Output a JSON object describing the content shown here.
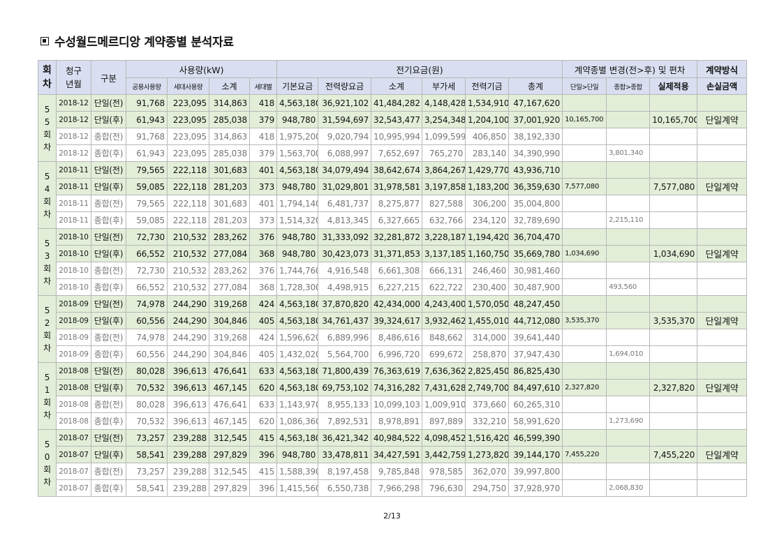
{
  "title": "수성월드메르디앙 계약종별 분석자료",
  "headers": {
    "round": "회\n차",
    "month": "청구\n년월",
    "category": "구분",
    "usage": "사용량(kW)",
    "fee": "전기요금(원)",
    "change": "계약종별 변경(전>후) 및 편차",
    "method": "계약방식",
    "usage_cols": [
      "공용사용량",
      "세대사용량",
      "소계",
      "세대별"
    ],
    "fee_cols": [
      "기본요금",
      "전력량요금",
      "소계",
      "부가세",
      "전력기금",
      "총계"
    ],
    "change_cols": [
      "단일>단일",
      "종합>종합",
      "실제적용"
    ],
    "method_col": "손실금액"
  },
  "groups": [
    {
      "round": "5\n5\n회\n차",
      "rows": [
        {
          "kind": "g",
          "month": "2018-12",
          "type": "단일(전)",
          "v": [
            "91,768",
            "223,095",
            "314,863",
            "418",
            "4,563,180",
            "36,921,102",
            "41,484,282",
            "4,148,428",
            "1,534,910",
            "47,167,620"
          ],
          "ss": "",
          "cc": "",
          "real": "",
          "method": ""
        },
        {
          "kind": "g",
          "month": "2018-12",
          "type": "단일(후)",
          "v": [
            "61,943",
            "223,095",
            "285,038",
            "379",
            "948,780",
            "31,594,697",
            "32,543,477",
            "3,254,348",
            "1,204,100",
            "37,001,920"
          ],
          "ss": "10,165,700",
          "cc": "",
          "real": "10,165,700",
          "method": "단일계약"
        },
        {
          "kind": "w",
          "month": "2018-12",
          "type": "종합(전)",
          "v": [
            "91,768",
            "223,095",
            "314,863",
            "418",
            "1,975,200",
            "9,020,794",
            "10,995,994",
            "1,099,599",
            "406,850",
            "38,192,330"
          ],
          "ss": "",
          "cc": "",
          "real": "",
          "method": ""
        },
        {
          "kind": "w",
          "month": "2018-12",
          "type": "종합(후)",
          "v": [
            "61,943",
            "223,095",
            "285,038",
            "379",
            "1,563,700",
            "6,088,997",
            "7,652,697",
            "765,270",
            "283,140",
            "34,390,990"
          ],
          "ss": "",
          "cc": "3,801,340",
          "real": "",
          "method": ""
        }
      ]
    },
    {
      "round": "5\n4\n회\n차",
      "rows": [
        {
          "kind": "g",
          "month": "2018-11",
          "type": "단일(전)",
          "v": [
            "79,565",
            "222,118",
            "301,683",
            "401",
            "4,563,180",
            "34,079,494",
            "38,642,674",
            "3,864,267",
            "1,429,770",
            "43,936,710"
          ],
          "ss": "",
          "cc": "",
          "real": "",
          "method": ""
        },
        {
          "kind": "g",
          "month": "2018-11",
          "type": "단일(후)",
          "v": [
            "59,085",
            "222,118",
            "281,203",
            "373",
            "948,780",
            "31,029,801",
            "31,978,581",
            "3,197,858",
            "1,183,200",
            "36,359,630"
          ],
          "ss": "7,577,080",
          "cc": "",
          "real": "7,577,080",
          "method": "단일계약"
        },
        {
          "kind": "w",
          "month": "2018-11",
          "type": "종합(전)",
          "v": [
            "79,565",
            "222,118",
            "301,683",
            "401",
            "1,794,140",
            "6,481,737",
            "8,275,877",
            "827,588",
            "306,200",
            "35,004,800"
          ],
          "ss": "",
          "cc": "",
          "real": "",
          "method": ""
        },
        {
          "kind": "w",
          "month": "2018-11",
          "type": "종합(후)",
          "v": [
            "59,085",
            "222,118",
            "281,203",
            "373",
            "1,514,320",
            "4,813,345",
            "6,327,665",
            "632,766",
            "234,120",
            "32,789,690"
          ],
          "ss": "",
          "cc": "2,215,110",
          "real": "",
          "method": ""
        }
      ]
    },
    {
      "round": "5\n3\n회\n차",
      "rows": [
        {
          "kind": "g",
          "month": "2018-10",
          "type": "단일(전)",
          "v": [
            "72,730",
            "210,532",
            "283,262",
            "376",
            "948,780",
            "31,333,092",
            "32,281,872",
            "3,228,187",
            "1,194,420",
            "36,704,470"
          ],
          "ss": "",
          "cc": "",
          "real": "",
          "method": ""
        },
        {
          "kind": "g",
          "month": "2018-10",
          "type": "단일(후)",
          "v": [
            "66,552",
            "210,532",
            "277,084",
            "368",
            "948,780",
            "30,423,073",
            "31,371,853",
            "3,137,185",
            "1,160,750",
            "35,669,780"
          ],
          "ss": "1,034,690",
          "cc": "",
          "real": "1,034,690",
          "method": "단일계약"
        },
        {
          "kind": "w",
          "month": "2018-10",
          "type": "종합(전)",
          "v": [
            "72,730",
            "210,532",
            "283,262",
            "376",
            "1,744,760",
            "4,916,548",
            "6,661,308",
            "666,131",
            "246,460",
            "30,981,460"
          ],
          "ss": "",
          "cc": "",
          "real": "",
          "method": ""
        },
        {
          "kind": "w",
          "month": "2018-10",
          "type": "종합(후)",
          "v": [
            "66,552",
            "210,532",
            "277,084",
            "368",
            "1,728,300",
            "4,498,915",
            "6,227,215",
            "622,722",
            "230,400",
            "30,487,900"
          ],
          "ss": "",
          "cc": "493,560",
          "real": "",
          "method": ""
        }
      ]
    },
    {
      "round": "5\n2\n회\n차",
      "rows": [
        {
          "kind": "g",
          "month": "2018-09",
          "type": "단일(전)",
          "v": [
            "74,978",
            "244,290",
            "319,268",
            "424",
            "4,563,180",
            "37,870,820",
            "42,434,000",
            "4,243,400",
            "1,570,050",
            "48,247,450"
          ],
          "ss": "",
          "cc": "",
          "real": "",
          "method": ""
        },
        {
          "kind": "g",
          "month": "2018-09",
          "type": "단일(후)",
          "v": [
            "60,556",
            "244,290",
            "304,846",
            "405",
            "4,563,180",
            "34,761,437",
            "39,324,617",
            "3,932,462",
            "1,455,010",
            "44,712,080"
          ],
          "ss": "3,535,370",
          "cc": "",
          "real": "3,535,370",
          "method": "단일계약"
        },
        {
          "kind": "w",
          "month": "2018-09",
          "type": "종합(전)",
          "v": [
            "74,978",
            "244,290",
            "319,268",
            "424",
            "1,596,620",
            "6,889,996",
            "8,486,616",
            "848,662",
            "314,000",
            "39,641,440"
          ],
          "ss": "",
          "cc": "",
          "real": "",
          "method": ""
        },
        {
          "kind": "w",
          "month": "2018-09",
          "type": "종합(후)",
          "v": [
            "60,556",
            "244,290",
            "304,846",
            "405",
            "1,432,020",
            "5,564,700",
            "6,996,720",
            "699,672",
            "258,870",
            "37,947,430"
          ],
          "ss": "",
          "cc": "1,694,010",
          "real": "",
          "method": ""
        }
      ]
    },
    {
      "round": "5\n1\n회\n차",
      "rows": [
        {
          "kind": "g",
          "month": "2018-08",
          "type": "단일(전)",
          "v": [
            "80,028",
            "396,613",
            "476,641",
            "633",
            "4,563,180",
            "71,800,439",
            "76,363,619",
            "7,636,362",
            "2,825,450",
            "86,825,430"
          ],
          "ss": "",
          "cc": "",
          "real": "",
          "method": ""
        },
        {
          "kind": "g",
          "month": "2018-08",
          "type": "단일(후)",
          "v": [
            "70,532",
            "396,613",
            "467,145",
            "620",
            "4,563,180",
            "69,753,102",
            "74,316,282",
            "7,431,628",
            "2,749,700",
            "84,497,610"
          ],
          "ss": "2,327,820",
          "cc": "",
          "real": "2,327,820",
          "method": "단일계약"
        },
        {
          "kind": "w",
          "month": "2018-08",
          "type": "종합(전)",
          "v": [
            "80,028",
            "396,613",
            "476,641",
            "633",
            "1,143,970",
            "8,955,133",
            "10,099,103",
            "1,009,910",
            "373,660",
            "60,265,310"
          ],
          "ss": "",
          "cc": "",
          "real": "",
          "method": ""
        },
        {
          "kind": "w",
          "month": "2018-08",
          "type": "종합(후)",
          "v": [
            "70,532",
            "396,613",
            "467,145",
            "620",
            "1,086,360",
            "7,892,531",
            "8,978,891",
            "897,889",
            "332,210",
            "58,991,620"
          ],
          "ss": "",
          "cc": "1,273,690",
          "real": "",
          "method": ""
        }
      ]
    },
    {
      "round": "5\n0\n회\n차",
      "rows": [
        {
          "kind": "g",
          "month": "2018-07",
          "type": "단일(전)",
          "v": [
            "73,257",
            "239,288",
            "312,545",
            "415",
            "4,563,180",
            "36,421,342",
            "40,984,522",
            "4,098,452",
            "1,516,420",
            "46,599,390"
          ],
          "ss": "",
          "cc": "",
          "real": "",
          "method": ""
        },
        {
          "kind": "g",
          "month": "2018-07",
          "type": "단일(후)",
          "v": [
            "58,541",
            "239,288",
            "297,829",
            "396",
            "948,780",
            "33,478,811",
            "34,427,591",
            "3,442,759",
            "1,273,820",
            "39,144,170"
          ],
          "ss": "7,455,220",
          "cc": "",
          "real": "7,455,220",
          "method": "단일계약"
        },
        {
          "kind": "w",
          "month": "2018-07",
          "type": "종합(전)",
          "v": [
            "73,257",
            "239,288",
            "312,545",
            "415",
            "1,588,390",
            "8,197,458",
            "9,785,848",
            "978,585",
            "362,070",
            "39,997,800"
          ],
          "ss": "",
          "cc": "",
          "real": "",
          "method": ""
        },
        {
          "kind": "w",
          "month": "2018-07",
          "type": "종합(후)",
          "v": [
            "58,541",
            "239,288",
            "297,829",
            "396",
            "1,415,560",
            "6,550,738",
            "7,966,298",
            "796,630",
            "294,750",
            "37,928,970"
          ],
          "ss": "",
          "cc": "2,068,830",
          "real": "",
          "method": ""
        }
      ]
    }
  ],
  "footer": "2/13"
}
